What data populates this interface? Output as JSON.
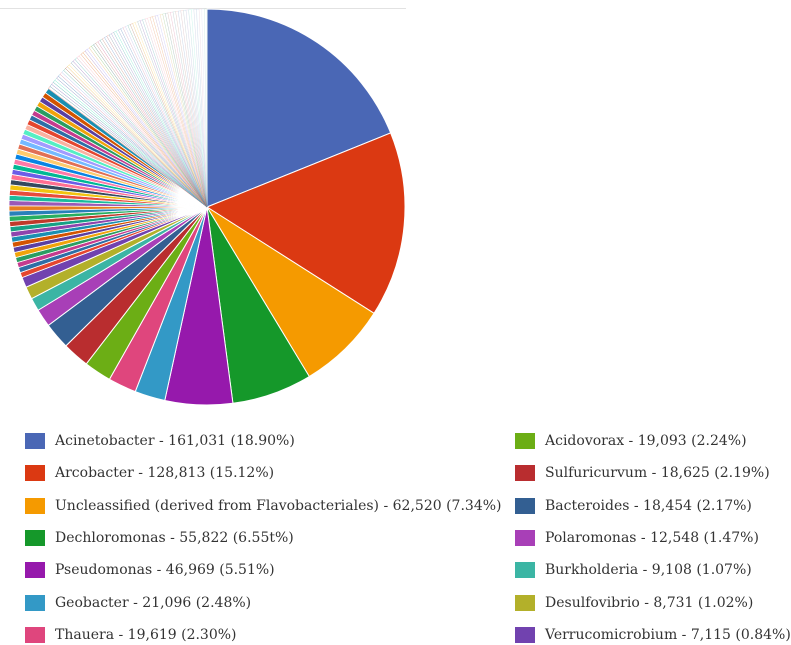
{
  "chart_data": {
    "type": "pie",
    "series_name": "",
    "slices": [
      {
        "label": "Acinetobacter",
        "value": 161031,
        "percent": 18.9,
        "color": "#4a67b5"
      },
      {
        "label": "Arcobacter",
        "value": 128813,
        "percent": 15.12,
        "color": "#db3912"
      },
      {
        "label": "Uncleassified (derived from Flavobacteriales)",
        "value": 62520,
        "percent": 7.34,
        "color": "#f59a00"
      },
      {
        "label": "Dechloromonas",
        "value": 55822,
        "percent": 6.55,
        "color": "#15982a"
      },
      {
        "label": "Pseudomonas",
        "value": 46969,
        "percent": 5.51,
        "color": "#9619ac"
      },
      {
        "label": "Geobacter",
        "value": 21096,
        "percent": 2.48,
        "color": "#3399c6"
      },
      {
        "label": "Thauera",
        "value": 19619,
        "percent": 2.3,
        "color": "#df467d"
      },
      {
        "label": "Acidovorax",
        "value": 19093,
        "percent": 2.24,
        "color": "#6cae15"
      },
      {
        "label": "Sulfuricurvum",
        "value": 18625,
        "percent": 2.19,
        "color": "#b92d2f"
      },
      {
        "label": "Bacteroides",
        "value": 18454,
        "percent": 2.17,
        "color": "#335f92"
      },
      {
        "label": "Polaromonas",
        "value": 12548,
        "percent": 1.47,
        "color": "#a83fb7"
      },
      {
        "label": "Burkholderia",
        "value": 9108,
        "percent": 1.07,
        "color": "#3bb5a4"
      },
      {
        "label": "Desulfovibrio",
        "value": 8731,
        "percent": 1.02,
        "color": "#b3b02a"
      },
      {
        "label": "Verrucomicrobium",
        "value": 7115,
        "percent": 0.84,
        "color": "#7142af"
      }
    ],
    "other_slice_colors": [
      "#e5462f",
      "#2e6ea6",
      "#c43b8e",
      "#2a9d62",
      "#f0a30a",
      "#5a3fa1",
      "#d35400",
      "#1a8fb1",
      "#8e44ad",
      "#16a085",
      "#c0392b",
      "#27ae60",
      "#2980b9",
      "#e67e22",
      "#9b59b6",
      "#1abc9c",
      "#e74c3c",
      "#f1c40f",
      "#34495e",
      "#ff6f91",
      "#6c5ce7",
      "#00b894",
      "#fd79a8",
      "#0984e3",
      "#fdcb6e",
      "#e17055",
      "#74b9ff",
      "#a29bfe",
      "#55efc4",
      "#fab1a0"
    ],
    "legend": [
      {
        "text": "Acinetobacter - 161,031 (18.90%)",
        "color": "#4a67b5"
      },
      {
        "text": "Arcobacter - 128,813 (15.12%)",
        "color": "#db3912"
      },
      {
        "text": "Uncleassified (derived from Flavobacteriales) - 62,520 (7.34%)",
        "color": "#f59a00"
      },
      {
        "text": "Dechloromonas - 55,822 (6.55t%)",
        "color": "#15982a"
      },
      {
        "text": "Pseudomonas - 46,969 (5.51%)",
        "color": "#9619ac"
      },
      {
        "text": "Geobacter - 21,096 (2.48%)",
        "color": "#3399c6"
      },
      {
        "text": "Thauera - 19,619 (2.30%)",
        "color": "#df467d"
      },
      {
        "text": "Acidovorax - 19,093 (2.24%)",
        "color": "#6cae15"
      },
      {
        "text": "Sulfuricurvum - 18,625 (2.19%)",
        "color": "#b92d2f"
      },
      {
        "text": "Bacteroides - 18,454 (2.17%)",
        "color": "#335f92"
      },
      {
        "text": "Polaromonas - 12,548 (1.47%)",
        "color": "#a83fb7"
      },
      {
        "text": "Burkholderia - 9,108 (1.07%)",
        "color": "#3bb5a4"
      },
      {
        "text": "Desulfovibrio - 8,731 (1.02%)",
        "color": "#b3b02a"
      },
      {
        "text": "Verrucomicrobium - 7,115 (0.84%)",
        "color": "#7142af"
      }
    ],
    "legend_placement": "bottom, two columns"
  }
}
